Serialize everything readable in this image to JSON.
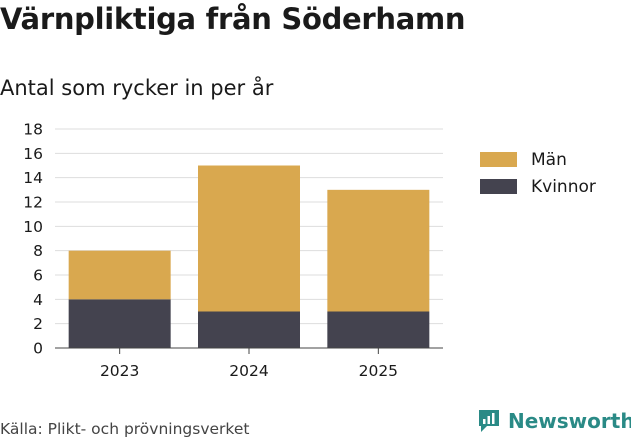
{
  "title": "Värnpliktiga från Söderhamn",
  "subtitle": "Antal som rycker in per år",
  "source": "Källa: Plikt- och prövningsverket",
  "brand": "Newsworthy",
  "colors": {
    "man": "#d9a84f",
    "kvinnor": "#44434f",
    "grid": "#dddddd",
    "brand": "#2a8a86"
  },
  "legend": [
    {
      "label": "Män",
      "color": "#d9a84f"
    },
    {
      "label": "Kvinnor",
      "color": "#44434f"
    }
  ],
  "chart_data": {
    "type": "bar",
    "stacked": true,
    "title": "Värnpliktiga från Söderhamn",
    "subtitle": "Antal som rycker in per år",
    "categories": [
      "2023",
      "2024",
      "2025"
    ],
    "series": [
      {
        "name": "Kvinnor",
        "values": [
          4,
          3,
          3
        ]
      },
      {
        "name": "Män",
        "values": [
          4,
          12,
          10
        ]
      }
    ],
    "yticks": [
      "0",
      "2",
      "4",
      "6",
      "8",
      "10",
      "12",
      "14",
      "16",
      "18"
    ],
    "ylim": [
      0,
      18
    ],
    "grid": true,
    "legend_position": "right"
  }
}
